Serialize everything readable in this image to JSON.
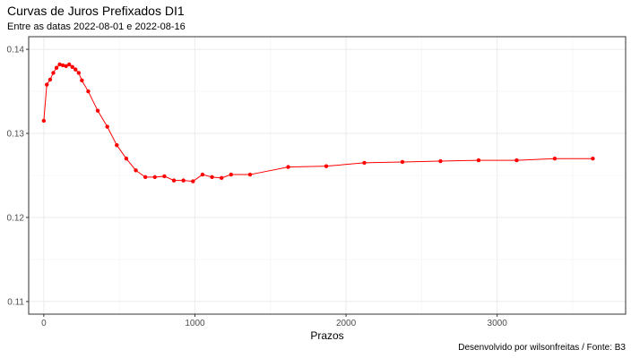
{
  "chart_data": {
    "type": "line",
    "title": "Curvas de Juros Prefixados DI1",
    "subtitle": "Entre as datas 2022-08-01 e 2022-08-16",
    "xlabel": "Prazos",
    "ylabel": "",
    "caption": "Desenvolvido por wilsonfreitas / Fonte: B3",
    "xlim": [
      -100,
      3850
    ],
    "ylim": [
      0.1085,
      0.1415
    ],
    "xticks": [
      0,
      1000,
      2000,
      3000
    ],
    "yticks": [
      0.11,
      0.12,
      0.13,
      0.14
    ],
    "ytick_labels": [
      "0.11",
      "0.12",
      "0.13",
      "0.14"
    ],
    "grid": true,
    "series": [
      {
        "color": "#ff0000",
        "x": [
          0,
          20,
          42,
          63,
          84,
          105,
          126,
          147,
          168,
          189,
          210,
          231,
          252,
          294,
          357,
          420,
          483,
          546,
          609,
          672,
          735,
          798,
          861,
          924,
          987,
          1050,
          1113,
          1176,
          1239,
          1365,
          1617,
          1869,
          2121,
          2373,
          2625,
          2877,
          3129,
          3381,
          3633
        ],
        "y": [
          0.1315,
          0.1358,
          0.1364,
          0.1372,
          0.1378,
          0.1382,
          0.1381,
          0.138,
          0.1382,
          0.1379,
          0.1376,
          0.1372,
          0.1363,
          0.135,
          0.1327,
          0.1308,
          0.1286,
          0.127,
          0.1256,
          0.1248,
          0.1248,
          0.1249,
          0.1244,
          0.1244,
          0.1243,
          0.1251,
          0.1248,
          0.1247,
          0.1251,
          0.1251,
          0.126,
          0.1261,
          0.1265,
          0.1266,
          0.1267,
          0.1268,
          0.1268,
          0.127,
          0.127
        ]
      }
    ]
  }
}
